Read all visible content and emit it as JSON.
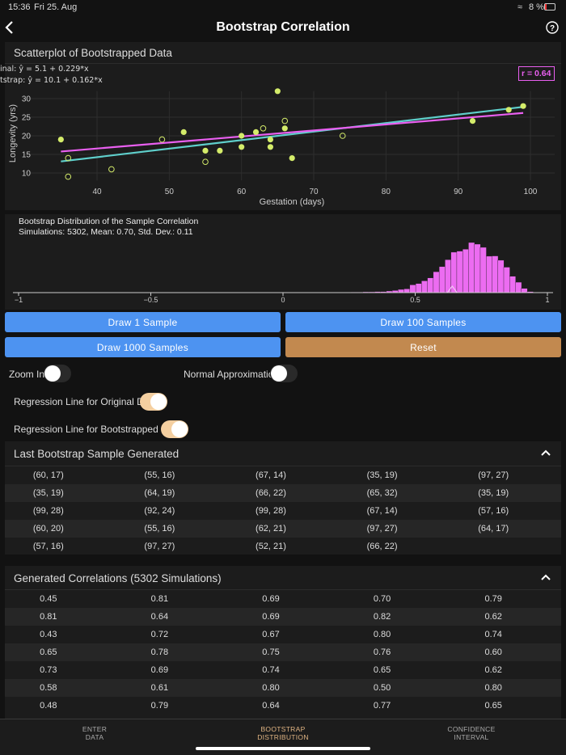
{
  "status": {
    "time": "15:36",
    "date": "Fri 25. Aug",
    "battery": "8 %"
  },
  "nav": {
    "title": "Bootstrap Correlation",
    "back_icon": "chevron-left-icon",
    "help_icon": "question-circle-icon"
  },
  "scatter": {
    "card_title": "Scatterplot of Bootstrapped Data",
    "eq_original": "inal: ŷ = 5.1 + 0.229*x",
    "eq_bootstrap": "tstrap: ŷ = 10.1 + 0.162*x",
    "r_label": "r = 0.64"
  },
  "histogram": {
    "title": "Bootstrap Distribution of the Sample Correlation",
    "stats": "Simulations: 5302, Mean: 0.70, Std. Dev.: 0.11"
  },
  "chart_data": [
    {
      "type": "scatter",
      "xlabel": "Gestation (days)",
      "ylabel": "Longevity (yrs)",
      "xlim": [
        32,
        101
      ],
      "ylim": [
        7,
        33
      ],
      "xticks": [
        40,
        50,
        60,
        70,
        80,
        90,
        100
      ],
      "yticks": [
        10,
        15,
        20,
        25,
        30
      ],
      "grid": true,
      "in_sample": [
        [
          35,
          19
        ],
        [
          52,
          21
        ],
        [
          55,
          16
        ],
        [
          57,
          16
        ],
        [
          60,
          20
        ],
        [
          60,
          17
        ],
        [
          62,
          21
        ],
        [
          64,
          19
        ],
        [
          64,
          17
        ],
        [
          65,
          32
        ],
        [
          66,
          22
        ],
        [
          67,
          14
        ],
        [
          92,
          24
        ],
        [
          97,
          27
        ],
        [
          99,
          28
        ]
      ],
      "not_in_sample": [
        [
          36,
          14
        ],
        [
          36,
          9
        ],
        [
          42,
          11
        ],
        [
          49,
          19
        ],
        [
          55,
          13
        ],
        [
          63,
          22
        ],
        [
          66,
          24
        ],
        [
          74,
          20
        ]
      ],
      "lines": [
        {
          "label": "Original",
          "intercept": 5.1,
          "slope": 0.229,
          "color": "#5fcfcb"
        },
        {
          "label": "Bootstrap",
          "intercept": 10.1,
          "slope": 0.162,
          "color": "#e95ff0"
        }
      ],
      "point_color": "#d4ec6a",
      "r": 0.64
    },
    {
      "type": "bar",
      "xlim": [
        -1,
        1
      ],
      "xticks": [
        -1,
        -0.5,
        0,
        0.5,
        1
      ],
      "xtick_labels": [
        "−1",
        "−0.5",
        "0",
        "0.5",
        "1"
      ],
      "bin_start": 0.08,
      "bin_width": 0.0222,
      "counts": [
        1,
        0,
        1,
        0,
        1,
        1,
        0,
        1,
        2,
        2,
        3,
        3,
        4,
        4,
        6,
        8,
        12,
        14,
        29,
        34,
        44,
        55,
        78,
        97,
        123,
        151,
        155,
        162,
        187,
        181,
        169,
        136,
        137,
        121,
        95,
        61,
        39,
        16,
        4,
        1
      ],
      "observed_marker": 0.64,
      "color": "#ec6cf1"
    }
  ],
  "buttons": {
    "draw1": "Draw 1 Sample",
    "draw100": "Draw 100 Samples",
    "draw1000": "Draw 1000 Samples",
    "reset": "Reset"
  },
  "toggles": {
    "zoom_in": {
      "label": "Zoom In",
      "on": false
    },
    "normal_approx": {
      "label": "Normal Approximation",
      "on": false
    },
    "reg_original": {
      "label": "Regression Line for Original Data",
      "on": true
    },
    "reg_bootstrap": {
      "label": "Regression Line for Bootstrapped Data",
      "on": true
    }
  },
  "last_sample": {
    "title": "Last Bootstrap Sample Generated",
    "rows": [
      [
        "(60, 17)",
        "(55, 16)",
        "(67, 14)",
        "(35, 19)",
        "(97, 27)"
      ],
      [
        "(35, 19)",
        "(64, 19)",
        "(66, 22)",
        "(65, 32)",
        "(35, 19)"
      ],
      [
        "(99, 28)",
        "(92, 24)",
        "(99, 28)",
        "(67, 14)",
        "(57, 16)"
      ],
      [
        "(60, 20)",
        "(55, 16)",
        "(62, 21)",
        "(97, 27)",
        "(64, 17)"
      ],
      [
        "(57, 16)",
        "(97, 27)",
        "(52, 21)",
        "(66, 22)",
        ""
      ]
    ]
  },
  "correlations": {
    "title": "Generated Correlations (5302 Simulations)",
    "rows": [
      [
        "0.45",
        "0.81",
        "0.69",
        "0.70",
        "0.79"
      ],
      [
        "0.81",
        "0.64",
        "0.69",
        "0.82",
        "0.62"
      ],
      [
        "0.43",
        "0.72",
        "0.67",
        "0.80",
        "0.74"
      ],
      [
        "0.65",
        "0.78",
        "0.75",
        "0.76",
        "0.60"
      ],
      [
        "0.73",
        "0.69",
        "0.74",
        "0.65",
        "0.62"
      ],
      [
        "0.58",
        "0.61",
        "0.80",
        "0.50",
        "0.80"
      ],
      [
        "0.48",
        "0.79",
        "0.64",
        "0.77",
        "0.65"
      ]
    ]
  },
  "tabs": [
    {
      "line1": "ENTER",
      "line2": "DATA",
      "active": false
    },
    {
      "line1": "BOOTSTRAP",
      "line2": "DISTRIBUTION",
      "active": true
    },
    {
      "line1": "CONFIDENCE",
      "line2": "INTERVAL",
      "active": false
    }
  ],
  "colors": {
    "accent": "#e0b483",
    "blue": "#4d93f1",
    "reset": "#c2894f"
  }
}
